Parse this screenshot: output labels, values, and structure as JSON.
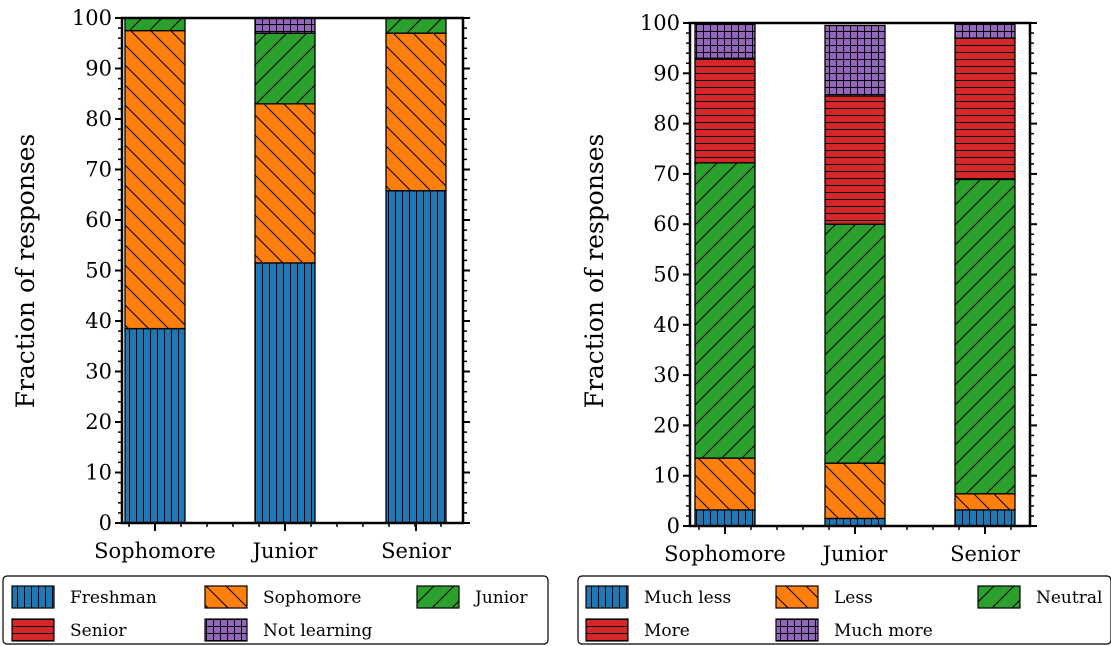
{
  "chart_data": [
    {
      "type": "bar",
      "stacked": true,
      "categories": [
        "Sophomore",
        "Junior",
        "Senior"
      ],
      "ylabel": "Fraction of responses",
      "xlabel": "",
      "ylim": [
        0,
        100
      ],
      "yticks": [
        0,
        10,
        20,
        30,
        40,
        50,
        60,
        70,
        80,
        90,
        100
      ],
      "legend_position": "bottom",
      "series": [
        {
          "name": "Freshman",
          "color": "#1f77b4",
          "hatch": "vertical",
          "values": [
            38.5,
            51.5,
            65.8
          ]
        },
        {
          "name": "Sophomore",
          "color": "#ff7f0e",
          "hatch": "backslash",
          "values": [
            59.0,
            31.5,
            31.2
          ]
        },
        {
          "name": "Junior",
          "color": "#2ca02c",
          "hatch": "slash",
          "values": [
            2.5,
            14.0,
            3.0
          ]
        },
        {
          "name": "Senior",
          "color": "#d62728",
          "hatch": "horizontal",
          "values": [
            0,
            0,
            0
          ]
        },
        {
          "name": "Not learning",
          "color": "#9467bd",
          "hatch": "grid",
          "values": [
            0,
            3.0,
            0
          ]
        }
      ]
    },
    {
      "type": "bar",
      "stacked": true,
      "categories": [
        "Sophomore",
        "Junior",
        "Senior"
      ],
      "ylabel": "Fraction of responses",
      "xlabel": "",
      "ylim": [
        0,
        100
      ],
      "yticks": [
        0,
        10,
        20,
        30,
        40,
        50,
        60,
        70,
        80,
        90,
        100
      ],
      "legend_position": "bottom",
      "series": [
        {
          "name": "Much less",
          "color": "#1f77b4",
          "hatch": "vertical",
          "values": [
            3.2,
            1.5,
            3.2
          ]
        },
        {
          "name": "Less",
          "color": "#ff7f0e",
          "hatch": "backslash",
          "values": [
            10.3,
            11.0,
            3.2
          ]
        },
        {
          "name": "Neutral",
          "color": "#2ca02c",
          "hatch": "slash",
          "values": [
            58.7,
            47.5,
            62.5
          ]
        },
        {
          "name": "More",
          "color": "#d62728",
          "hatch": "horizontal",
          "values": [
            20.8,
            25.5,
            28.1
          ]
        },
        {
          "name": "Much more",
          "color": "#9467bd",
          "hatch": "grid",
          "values": [
            7.0,
            14.0,
            3.0
          ]
        }
      ]
    }
  ]
}
